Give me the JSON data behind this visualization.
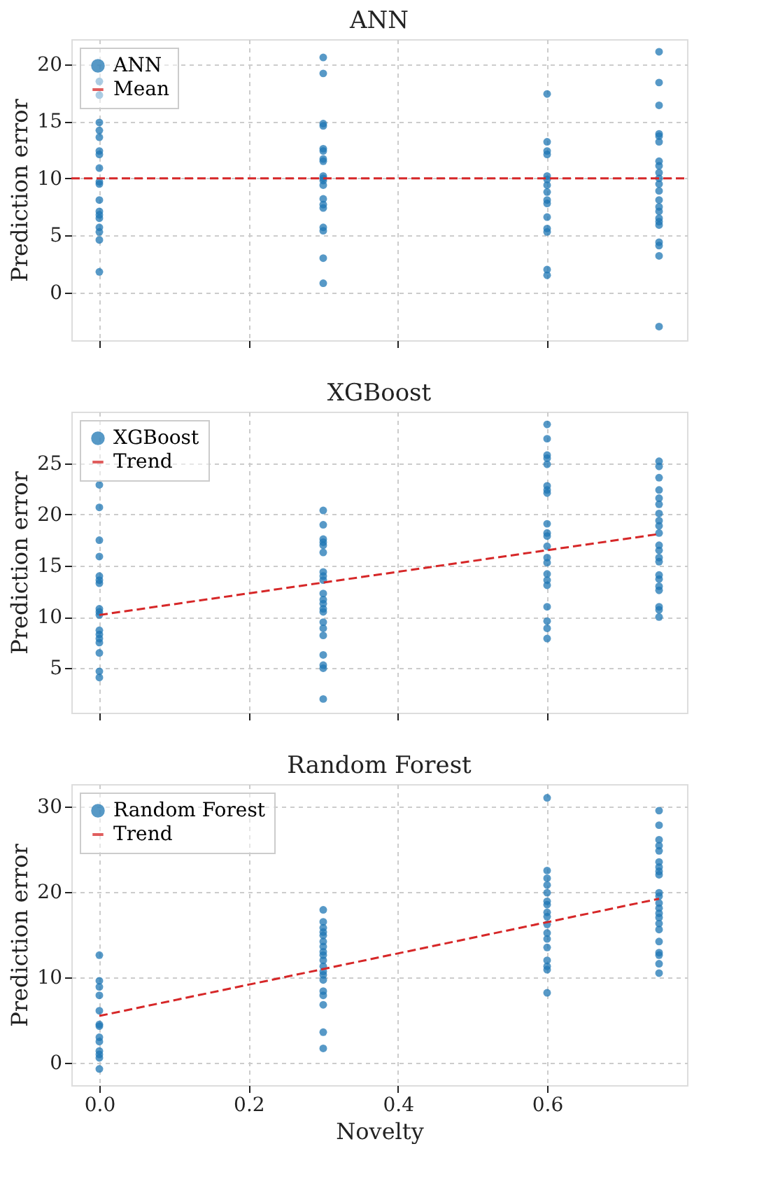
{
  "chart_data": [
    {
      "type": "scatter",
      "title": "ANN",
      "ylabel": "Prediction error",
      "xlim": [
        -0.0375,
        0.7875
      ],
      "ylim": [
        -4.2,
        22.2
      ],
      "xticks": [
        0,
        0.2,
        0.4,
        0.6
      ],
      "yticks": [
        0,
        5,
        10,
        15,
        20
      ],
      "tick_labels": "y",
      "grid": true,
      "legend": "top left",
      "series": [
        {
          "name": "ANN",
          "color": "#1f77b4",
          "marker": "circle",
          "x": [
            0,
            0,
            0,
            0,
            0,
            0,
            0,
            0,
            0,
            0,
            0,
            0,
            0,
            0,
            0,
            0,
            0,
            0,
            0.3,
            0.3,
            0.3,
            0.3,
            0.3,
            0.3,
            0.3,
            0.3,
            0.3,
            0.3,
            0.3,
            0.3,
            0.3,
            0.3,
            0.3,
            0.3,
            0.3,
            0.3,
            0.3,
            0.6,
            0.6,
            0.6,
            0.6,
            0.6,
            0.6,
            0.6,
            0.6,
            0.6,
            0.6,
            0.6,
            0.6,
            0.6,
            0.6,
            0.6,
            0.75,
            0.75,
            0.75,
            0.75,
            0.75,
            0.75,
            0.75,
            0.75,
            0.75,
            0.75,
            0.75,
            0.75,
            0.75,
            0.75,
            0.75,
            0.75,
            0.75,
            0.75,
            0.75,
            0.75,
            0.75,
            0.75
          ],
          "values": [
            18.5,
            17.3,
            14.9,
            14.2,
            13.6,
            12.4,
            12.1,
            10.9,
            9.7,
            9.5,
            8.1,
            7.1,
            6.8,
            6.5,
            5.7,
            5.3,
            4.6,
            1.8,
            20.6,
            19.2,
            14.8,
            14.6,
            12.6,
            12.4,
            11.7,
            11.5,
            10.2,
            10.0,
            9.8,
            9.4,
            8.2,
            7.7,
            7.4,
            5.7,
            5.4,
            3.0,
            0.8,
            17.4,
            13.2,
            12.4,
            12.1,
            10.2,
            9.9,
            9.4,
            8.8,
            8.1,
            7.8,
            6.6,
            5.6,
            5.3,
            2.0,
            1.5,
            21.1,
            18.4,
            16.4,
            13.9,
            13.7,
            13.2,
            11.5,
            11.1,
            10.5,
            10.0,
            9.5,
            8.9,
            8.1,
            7.5,
            7.1,
            6.5,
            6.2,
            5.9,
            4.4,
            4.1,
            3.2,
            -3.0
          ]
        },
        {
          "name": "Mean",
          "type": "line",
          "color": "#d62728",
          "line_style": "dashed",
          "x": [
            -0.0375,
            0.7875
          ],
          "values": [
            10,
            10
          ]
        }
      ]
    },
    {
      "type": "scatter",
      "title": "XGBoost",
      "ylabel": "Prediction error",
      "xlim": [
        -0.0375,
        0.7875
      ],
      "ylim": [
        0.66,
        30.04
      ],
      "xticks": [
        0,
        0.2,
        0.4,
        0.6
      ],
      "yticks": [
        5,
        10,
        15,
        20,
        25
      ],
      "tick_labels": "y",
      "grid": true,
      "legend": "top left",
      "series": [
        {
          "name": "XGBoost",
          "color": "#1f77b4",
          "marker": "circle",
          "x": [
            0,
            0,
            0,
            0,
            0,
            0,
            0,
            0,
            0,
            0,
            0,
            0,
            0,
            0,
            0,
            0,
            0,
            0.3,
            0.3,
            0.3,
            0.3,
            0.3,
            0.3,
            0.3,
            0.3,
            0.3,
            0.3,
            0.3,
            0.3,
            0.3,
            0.3,
            0.3,
            0.3,
            0.3,
            0.3,
            0.3,
            0.3,
            0.3,
            0.6,
            0.6,
            0.6,
            0.6,
            0.6,
            0.6,
            0.6,
            0.6,
            0.6,
            0.6,
            0.6,
            0.6,
            0.6,
            0.6,
            0.6,
            0.6,
            0.6,
            0.6,
            0.6,
            0.6,
            0.6,
            0.75,
            0.75,
            0.75,
            0.75,
            0.75,
            0.75,
            0.75,
            0.75,
            0.75,
            0.75,
            0.75,
            0.75,
            0.75,
            0.75,
            0.75,
            0.75,
            0.75,
            0.75,
            0.75,
            0.75,
            0.75
          ],
          "values": [
            22.9,
            20.7,
            17.5,
            15.9,
            14.0,
            13.6,
            13.3,
            10.8,
            10.5,
            10.2,
            8.7,
            8.3,
            7.9,
            7.5,
            6.5,
            4.7,
            4.1,
            20.4,
            19.0,
            17.6,
            17.3,
            17.0,
            16.3,
            14.4,
            14.0,
            13.6,
            12.3,
            11.7,
            11.3,
            10.8,
            10.5,
            9.5,
            8.9,
            8.2,
            6.3,
            5.3,
            5.0,
            2.0,
            28.8,
            27.4,
            25.8,
            25.5,
            24.9,
            22.8,
            22.4,
            22.1,
            19.1,
            18.2,
            17.9,
            16.9,
            15.8,
            15.3,
            14.2,
            13.6,
            13.1,
            11.0,
            9.6,
            8.9,
            7.9,
            25.2,
            24.7,
            23.6,
            22.4,
            21.6,
            21.0,
            20.1,
            19.4,
            18.9,
            18.2,
            17.0,
            16.5,
            15.8,
            15.4,
            14.1,
            13.7,
            13.0,
            12.6,
            11.0,
            10.7,
            10.0
          ]
        },
        {
          "name": "Trend",
          "type": "line",
          "color": "#d62728",
          "line_style": "dashed",
          "x": [
            0,
            0.75
          ],
          "values": [
            10.2,
            18.1
          ]
        }
      ]
    },
    {
      "type": "scatter",
      "title": "Random Forest",
      "xlabel": "Novelty",
      "ylabel": "Prediction error",
      "xlim": [
        -0.0375,
        0.7875
      ],
      "ylim": [
        -2.6,
        32.6
      ],
      "xticks": [
        {
          "value": 0,
          "label": "0.0"
        },
        0.2,
        0.4,
        0.6
      ],
      "yticks": [
        0,
        10,
        20,
        30
      ],
      "grid": true,
      "legend": "top left",
      "series": [
        {
          "name": "Random Forest",
          "color": "#1f77b4",
          "marker": "circle",
          "x": [
            0,
            0,
            0,
            0,
            0,
            0,
            0,
            0,
            0,
            0,
            0,
            0,
            0,
            0.3,
            0.3,
            0.3,
            0.3,
            0.3,
            0.3,
            0.3,
            0.3,
            0.3,
            0.3,
            0.3,
            0.3,
            0.3,
            0.3,
            0.3,
            0.3,
            0.3,
            0.3,
            0.3,
            0.6,
            0.6,
            0.6,
            0.6,
            0.6,
            0.6,
            0.6,
            0.6,
            0.6,
            0.6,
            0.6,
            0.6,
            0.6,
            0.6,
            0.6,
            0.6,
            0.6,
            0.75,
            0.75,
            0.75,
            0.75,
            0.75,
            0.75,
            0.75,
            0.75,
            0.75,
            0.75,
            0.75,
            0.75,
            0.75,
            0.75,
            0.75,
            0.75,
            0.75,
            0.75,
            0.75,
            0.75,
            0.75,
            0.75
          ],
          "values": [
            12.6,
            9.6,
            8.9,
            7.9,
            6.1,
            4.5,
            4.3,
            3.0,
            2.5,
            1.4,
            1.0,
            0.6,
            -0.7,
            17.9,
            16.5,
            15.8,
            15.3,
            14.9,
            14.2,
            13.6,
            13.0,
            12.6,
            12.0,
            11.3,
            10.7,
            10.3,
            9.7,
            8.4,
            7.9,
            6.8,
            3.6,
            1.7,
            31.0,
            22.5,
            21.6,
            20.8,
            19.9,
            18.9,
            18.5,
            17.6,
            17.1,
            16.2,
            15.2,
            14.5,
            13.5,
            12.0,
            11.3,
            10.9,
            8.2,
            29.5,
            27.8,
            26.1,
            25.4,
            24.8,
            23.5,
            22.9,
            22.4,
            22.0,
            19.9,
            19.5,
            18.7,
            18.1,
            17.5,
            17.0,
            16.3,
            15.6,
            14.2,
            12.9,
            12.6,
            11.6,
            10.5
          ]
        },
        {
          "name": "Trend",
          "type": "line",
          "color": "#d62728",
          "line_style": "dashed",
          "x": [
            0,
            0.75
          ],
          "values": [
            5.5,
            19.2
          ]
        }
      ]
    }
  ]
}
